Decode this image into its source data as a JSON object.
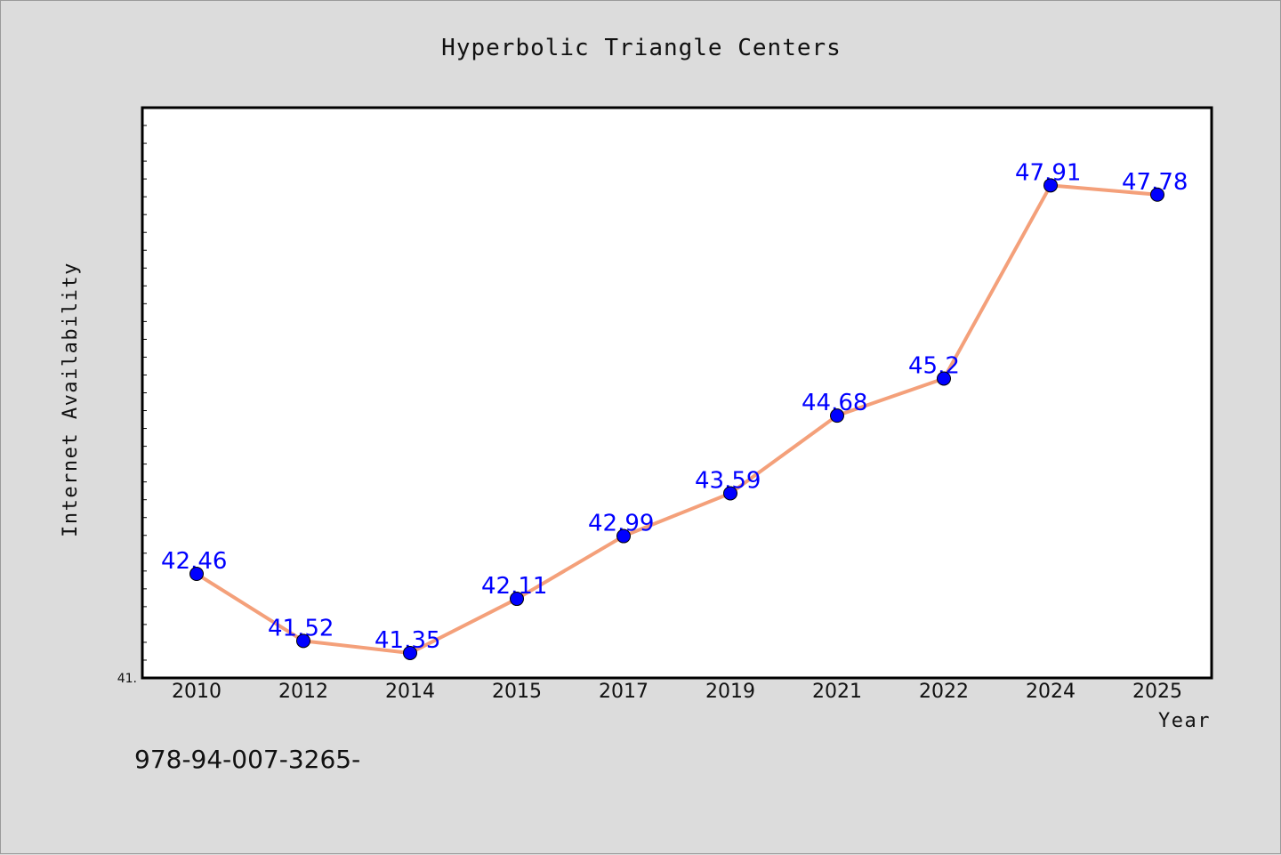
{
  "chart_data": {
    "type": "line",
    "title": "Hyperbolic Triangle Centers",
    "xlabel": "Year",
    "ylabel": "Internet Availability",
    "categories": [
      "2010",
      "2012",
      "2014",
      "2015",
      "2017",
      "2019",
      "2021",
      "2022",
      "2024",
      "2025"
    ],
    "values": [
      42.46,
      41.52,
      41.35,
      42.11,
      42.99,
      43.59,
      44.68,
      45.2,
      47.91,
      47.78
    ],
    "data_labels": [
      "42.46",
      "41.52",
      "41.35",
      "42.11",
      "42.99",
      "43.59",
      "44.68",
      "45.2",
      "47.91",
      "47.78"
    ],
    "ylim": [
      41,
      49
    ],
    "y_tick_label": "41.",
    "grid": false,
    "legend": "none",
    "line_color": "#f4a07a",
    "marker_color": "#0000ff",
    "label_color": "#0000ff",
    "plot_background": "#ffffff"
  },
  "footer_text": "978-94-007-3265-"
}
